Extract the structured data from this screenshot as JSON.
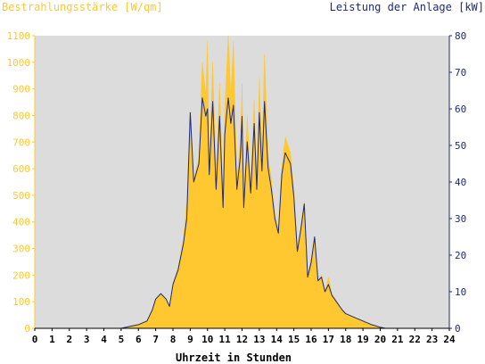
{
  "chart_data": {
    "type": "area",
    "title_left": "Bestrahlungsstärke [W/qm]",
    "title_right": "Leistung der Anlage [kW]",
    "xlabel": "Uhrzeit in Stunden",
    "x_ticks": [
      "0",
      "1",
      "2",
      "3",
      "4",
      "5",
      "6",
      "7",
      "8",
      "9",
      "10",
      "11",
      "12",
      "13",
      "14",
      "15",
      "16",
      "17",
      "18",
      "19",
      "20",
      "21",
      "22",
      "23",
      "24"
    ],
    "xlim": [
      0,
      24
    ],
    "y_left_ticks": [
      "0",
      "100",
      "200",
      "300",
      "400",
      "500",
      "600",
      "700",
      "800",
      "900",
      "1000",
      "1100"
    ],
    "ylim_left": [
      0,
      1100
    ],
    "y_right_ticks": [
      "0",
      "10",
      "20",
      "30",
      "40",
      "50",
      "60",
      "70",
      "80"
    ],
    "ylim_right": [
      0,
      80
    ],
    "grid": false,
    "background": "#dcdcdc",
    "series": [
      {
        "name": "Bestrahlungsstärke [W/qm]",
        "axis": "left",
        "color": "#ffc830",
        "style": "filled-area",
        "points": [
          [
            0,
            0
          ],
          [
            5.0,
            0
          ],
          [
            5.5,
            8
          ],
          [
            6.0,
            15
          ],
          [
            6.5,
            30
          ],
          [
            6.8,
            70
          ],
          [
            7.0,
            110
          ],
          [
            7.3,
            130
          ],
          [
            7.6,
            110
          ],
          [
            7.8,
            80
          ],
          [
            8.0,
            170
          ],
          [
            8.3,
            230
          ],
          [
            8.6,
            330
          ],
          [
            8.8,
            480
          ],
          [
            9.0,
            800
          ],
          [
            9.2,
            560
          ],
          [
            9.5,
            640
          ],
          [
            9.7,
            1000
          ],
          [
            9.9,
            880
          ],
          [
            10.0,
            1080
          ],
          [
            10.1,
            620
          ],
          [
            10.3,
            1000
          ],
          [
            10.5,
            560
          ],
          [
            10.7,
            920
          ],
          [
            10.9,
            480
          ],
          [
            11.0,
            820
          ],
          [
            11.2,
            1100
          ],
          [
            11.35,
            880
          ],
          [
            11.5,
            1080
          ],
          [
            11.7,
            560
          ],
          [
            11.9,
            700
          ],
          [
            12.0,
            920
          ],
          [
            12.1,
            480
          ],
          [
            12.3,
            800
          ],
          [
            12.5,
            530
          ],
          [
            12.7,
            860
          ],
          [
            12.85,
            560
          ],
          [
            13.0,
            940
          ],
          [
            13.15,
            640
          ],
          [
            13.3,
            1030
          ],
          [
            13.5,
            650
          ],
          [
            13.7,
            560
          ],
          [
            13.9,
            430
          ],
          [
            14.1,
            370
          ],
          [
            14.3,
            600
          ],
          [
            14.5,
            720
          ],
          [
            14.8,
            660
          ],
          [
            15.0,
            520
          ],
          [
            15.2,
            300
          ],
          [
            15.4,
            380
          ],
          [
            15.6,
            480
          ],
          [
            15.8,
            200
          ],
          [
            16.0,
            260
          ],
          [
            16.2,
            340
          ],
          [
            16.4,
            180
          ],
          [
            16.6,
            200
          ],
          [
            16.8,
            140
          ],
          [
            17.0,
            190
          ],
          [
            17.2,
            130
          ],
          [
            17.5,
            100
          ],
          [
            17.8,
            70
          ],
          [
            18.0,
            55
          ],
          [
            18.5,
            40
          ],
          [
            19.0,
            28
          ],
          [
            19.5,
            15
          ],
          [
            20.0,
            5
          ],
          [
            20.3,
            0
          ],
          [
            24,
            0
          ]
        ]
      },
      {
        "name": "Leistung der Anlage [kW]",
        "axis": "right",
        "color": "#1c2a78",
        "style": "line",
        "points": [
          [
            0,
            0
          ],
          [
            5.0,
            0
          ],
          [
            5.5,
            0.5
          ],
          [
            6.0,
            1.0
          ],
          [
            6.5,
            2.0
          ],
          [
            6.8,
            5.0
          ],
          [
            7.0,
            8.0
          ],
          [
            7.3,
            9.5
          ],
          [
            7.6,
            8.0
          ],
          [
            7.8,
            6.0
          ],
          [
            8.0,
            12.0
          ],
          [
            8.3,
            16.0
          ],
          [
            8.6,
            23.0
          ],
          [
            8.8,
            30.0
          ],
          [
            9.0,
            59.0
          ],
          [
            9.2,
            40.0
          ],
          [
            9.5,
            45.0
          ],
          [
            9.7,
            63.0
          ],
          [
            9.9,
            58.0
          ],
          [
            10.0,
            60.0
          ],
          [
            10.1,
            42.0
          ],
          [
            10.3,
            62.0
          ],
          [
            10.5,
            38.0
          ],
          [
            10.7,
            58.0
          ],
          [
            10.9,
            33.0
          ],
          [
            11.0,
            53.0
          ],
          [
            11.2,
            63.0
          ],
          [
            11.35,
            56.0
          ],
          [
            11.5,
            61.0
          ],
          [
            11.7,
            38.0
          ],
          [
            11.9,
            47.0
          ],
          [
            12.0,
            58.0
          ],
          [
            12.1,
            33.0
          ],
          [
            12.3,
            51.0
          ],
          [
            12.5,
            37.0
          ],
          [
            12.7,
            56.0
          ],
          [
            12.85,
            38.0
          ],
          [
            13.0,
            59.0
          ],
          [
            13.15,
            43.0
          ],
          [
            13.3,
            62.0
          ],
          [
            13.5,
            44.0
          ],
          [
            13.7,
            38.0
          ],
          [
            13.9,
            30.0
          ],
          [
            14.1,
            26.0
          ],
          [
            14.3,
            42.0
          ],
          [
            14.5,
            48.0
          ],
          [
            14.8,
            45.0
          ],
          [
            15.0,
            36.0
          ],
          [
            15.2,
            21.0
          ],
          [
            15.4,
            27.0
          ],
          [
            15.6,
            34.0
          ],
          [
            15.8,
            14.0
          ],
          [
            16.0,
            18.0
          ],
          [
            16.2,
            25.0
          ],
          [
            16.4,
            13.0
          ],
          [
            16.6,
            14.0
          ],
          [
            16.8,
            10.0
          ],
          [
            17.0,
            12.0
          ],
          [
            17.2,
            9.0
          ],
          [
            17.5,
            7.0
          ],
          [
            17.8,
            5.0
          ],
          [
            18.0,
            4.0
          ],
          [
            18.5,
            3.0
          ],
          [
            19.0,
            2.0
          ],
          [
            19.5,
            1.0
          ],
          [
            20.0,
            0.3
          ],
          [
            20.3,
            0
          ],
          [
            24,
            0
          ]
        ]
      }
    ]
  }
}
